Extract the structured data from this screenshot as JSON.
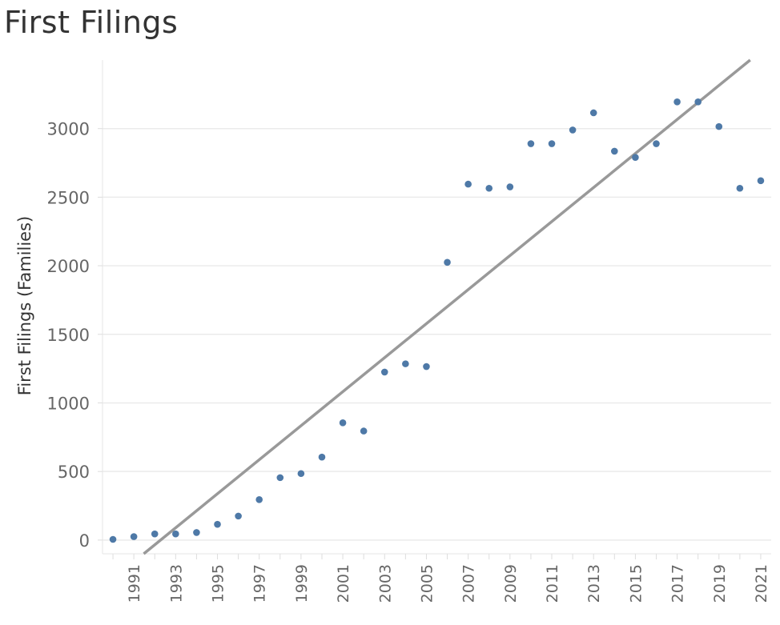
{
  "title": "First Filings",
  "chart_data": {
    "type": "scatter",
    "title": "First Filings",
    "xlabel": "",
    "ylabel": "First Filings (Families)",
    "x": [
      1990,
      1991,
      1992,
      1993,
      1994,
      1995,
      1996,
      1997,
      1998,
      1999,
      2000,
      2001,
      2002,
      2003,
      2004,
      2005,
      2006,
      2007,
      2008,
      2009,
      2010,
      2011,
      2012,
      2013,
      2014,
      2015,
      2016,
      2017,
      2018,
      2019,
      2020,
      2021
    ],
    "y": [
      5,
      25,
      45,
      45,
      55,
      115,
      175,
      295,
      455,
      485,
      605,
      855,
      795,
      1225,
      1285,
      1265,
      2025,
      2595,
      2565,
      2575,
      2890,
      2890,
      2990,
      3115,
      2835,
      2790,
      2890,
      3195,
      3195,
      3015,
      2565,
      2620
    ],
    "xlim": [
      1989.5,
      2021.5
    ],
    "ylim": [
      -100,
      3500
    ],
    "x_ticks": [
      "1991",
      "1993",
      "1995",
      "1997",
      "1999",
      "2001",
      "2003",
      "2005",
      "2007",
      "2009",
      "2011",
      "2013",
      "2015",
      "2017",
      "2019",
      "2021"
    ],
    "y_ticks": [
      "0",
      "500",
      "1000",
      "1500",
      "2000",
      "2500",
      "3000"
    ],
    "trendline": true,
    "grid": true,
    "legend": "none",
    "colors": {
      "points": "#4e79a7",
      "trend": "#999999",
      "grid": "#ebebeb",
      "axis_text": "#666666"
    }
  }
}
